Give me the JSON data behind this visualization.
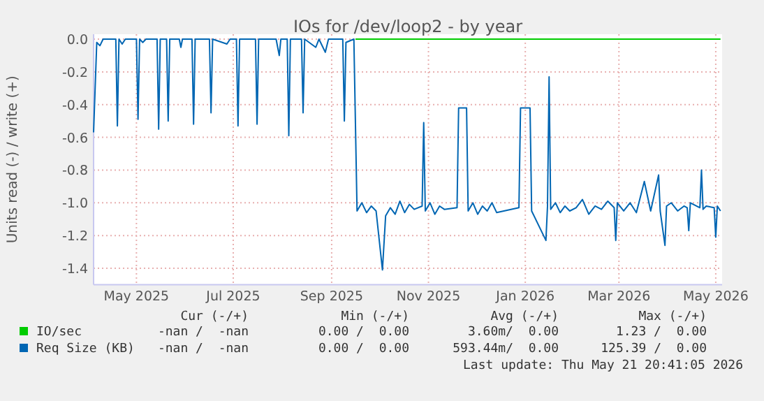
{
  "chart_data": {
    "type": "line",
    "title": "IOs for /dev/loop2 - by year",
    "ylabel": "Units read (-) / write (+)",
    "xlim": [
      "2025-04-19",
      "2026-05-20"
    ],
    "xticks": [
      {
        "value": "2025-05-16",
        "label": "May 2025"
      },
      {
        "value": "2025-07-16",
        "label": "Jul 2025"
      },
      {
        "value": "2025-09-16",
        "label": "Sep 2025"
      },
      {
        "value": "2025-11-16",
        "label": "Nov 2025"
      },
      {
        "value": "2026-01-16",
        "label": "Jan 2026"
      },
      {
        "value": "2026-03-16",
        "label": "Mar 2026"
      },
      {
        "value": "2026-05-16",
        "label": "May 2026"
      }
    ],
    "ylim": [
      -1.5,
      0.03
    ],
    "yticks": [
      {
        "value": 0,
        "label": "0.0"
      },
      {
        "value": -0.2,
        "label": "-0.2"
      },
      {
        "value": -0.4,
        "label": "-0.4"
      },
      {
        "value": -0.6,
        "label": "-0.6"
      },
      {
        "value": -0.8,
        "label": "-0.8"
      },
      {
        "value": -1.0,
        "label": "-1.0"
      },
      {
        "value": -1.2,
        "label": "-1.2"
      },
      {
        "value": -1.4,
        "label": "-1.4"
      }
    ],
    "grid": true,
    "legend": "bottom",
    "series": [
      {
        "name": "IO/sec",
        "color": "#00cc00",
        "x": [
          "2025-10-01",
          "2026-05-19"
        ],
        "values": [
          0,
          0
        ]
      },
      {
        "name": "Req Size (KB)",
        "color": "#0066b3",
        "x": [
          "2025-04-19",
          "2025-04-21",
          "2025-04-23",
          "2025-04-25",
          "2025-05-03",
          "2025-05-04",
          "2025-05-05",
          "2025-05-07",
          "2025-05-09",
          "2025-05-16",
          "2025-05-17",
          "2025-05-18",
          "2025-05-20",
          "2025-05-22",
          "2025-05-29",
          "2025-05-30",
          "2025-05-31",
          "2025-06-04",
          "2025-06-05",
          "2025-06-06",
          "2025-06-12",
          "2025-06-13",
          "2025-06-14",
          "2025-06-20",
          "2025-06-21",
          "2025-06-22",
          "2025-07-01",
          "2025-07-02",
          "2025-07-03",
          "2025-07-12",
          "2025-07-14",
          "2025-07-18",
          "2025-07-19",
          "2025-07-20",
          "2025-07-30",
          "2025-07-31",
          "2025-08-01",
          "2025-08-12",
          "2025-08-14",
          "2025-08-15",
          "2025-08-19",
          "2025-08-20",
          "2025-08-21",
          "2025-08-28",
          "2025-08-29",
          "2025-08-30",
          "2025-09-06",
          "2025-09-08",
          "2025-09-12",
          "2025-09-14",
          "2025-09-23",
          "2025-09-24",
          "2025-09-25",
          "2025-09-30",
          "2025-10-02",
          "2025-10-05",
          "2025-10-08",
          "2025-10-11",
          "2025-10-14",
          "2025-10-18",
          "2025-10-20",
          "2025-10-23",
          "2025-10-26",
          "2025-10-29",
          "2025-11-01",
          "2025-11-04",
          "2025-11-07",
          "2025-11-12",
          "2025-11-13",
          "2025-11-14",
          "2025-11-17",
          "2025-11-20",
          "2025-11-23",
          "2025-11-26",
          "2025-12-04",
          "2025-12-05",
          "2025-12-10",
          "2025-12-11",
          "2025-12-14",
          "2025-12-17",
          "2025-12-20",
          "2025-12-23",
          "2025-12-26",
          "2025-12-29",
          "2026-01-12",
          "2026-01-13",
          "2026-01-19",
          "2026-01-20",
          "2026-01-29",
          "2026-01-30",
          "2026-01-31",
          "2026-02-01",
          "2026-02-04",
          "2026-02-07",
          "2026-02-10",
          "2026-02-13",
          "2026-02-17",
          "2026-02-21",
          "2026-02-25",
          "2026-03-01",
          "2026-03-05",
          "2026-03-09",
          "2026-03-13",
          "2026-03-14",
          "2026-03-15",
          "2026-03-19",
          "2026-03-23",
          "2026-03-27",
          "2026-04-01",
          "2026-04-05",
          "2026-04-10",
          "2026-04-11",
          "2026-04-14",
          "2026-04-15",
          "2026-04-18",
          "2026-04-22",
          "2026-04-26",
          "2026-04-28",
          "2026-04-29",
          "2026-04-30",
          "2026-05-06",
          "2026-05-07",
          "2026-05-08",
          "2026-05-10",
          "2026-05-15",
          "2026-05-16",
          "2026-05-17",
          "2026-05-19"
        ],
        "values": [
          -0.57,
          -0.02,
          -0.04,
          0,
          0,
          -0.53,
          0,
          -0.03,
          0,
          0,
          -0.49,
          0,
          -0.02,
          0,
          0,
          -0.55,
          0,
          0,
          -0.5,
          0,
          0,
          -0.05,
          0,
          0,
          -0.52,
          0,
          0,
          -0.45,
          0,
          -0.03,
          0,
          0,
          -0.53,
          0,
          0,
          -0.52,
          0,
          0,
          -0.1,
          0,
          0,
          -0.59,
          0,
          0,
          -0.45,
          0,
          -0.05,
          0,
          -0.08,
          0,
          0,
          -0.5,
          -0.02,
          0,
          -1.05,
          -1.0,
          -1.06,
          -1.02,
          -1.05,
          -1.41,
          -1.08,
          -1.03,
          -1.07,
          -0.99,
          -1.06,
          -1.01,
          -1.04,
          -1.02,
          -0.51,
          -1.05,
          -1.0,
          -1.07,
          -1.02,
          -1.04,
          -1.03,
          -0.42,
          -0.42,
          -1.05,
          -1.0,
          -1.07,
          -1.02,
          -1.05,
          -1.0,
          -1.06,
          -1.03,
          -0.42,
          -0.42,
          -1.05,
          -1.23,
          -1.02,
          -0.23,
          -1.04,
          -1.0,
          -1.06,
          -1.02,
          -1.05,
          -1.03,
          -0.98,
          -1.07,
          -1.02,
          -1.04,
          -0.99,
          -1.03,
          -1.23,
          -1.0,
          -1.05,
          -1.0,
          -1.06,
          -0.87,
          -1.05,
          -0.83,
          -1.05,
          -1.26,
          -1.02,
          -1.0,
          -1.05,
          -1.02,
          -1.03,
          -1.17,
          -1.0,
          -1.03,
          -0.8,
          -1.04,
          -1.02,
          -1.03,
          -1.21,
          -1.02,
          -1.05
        ]
      }
    ],
    "annotations": [
      "Cur (-/+)",
      "Min (-/+)",
      "Avg (-/+)",
      "Max (-/+)",
      "-nan /  -nan",
      "0.00 /  0.00",
      "3.60m/  0.00",
      "1.23 /  0.00",
      "-nan /  -nan",
      "0.00 /  0.00",
      "593.44m/  0.00",
      "125.39 /  0.00",
      "Last update: Thu May 21 20:41:05 2026"
    ]
  }
}
